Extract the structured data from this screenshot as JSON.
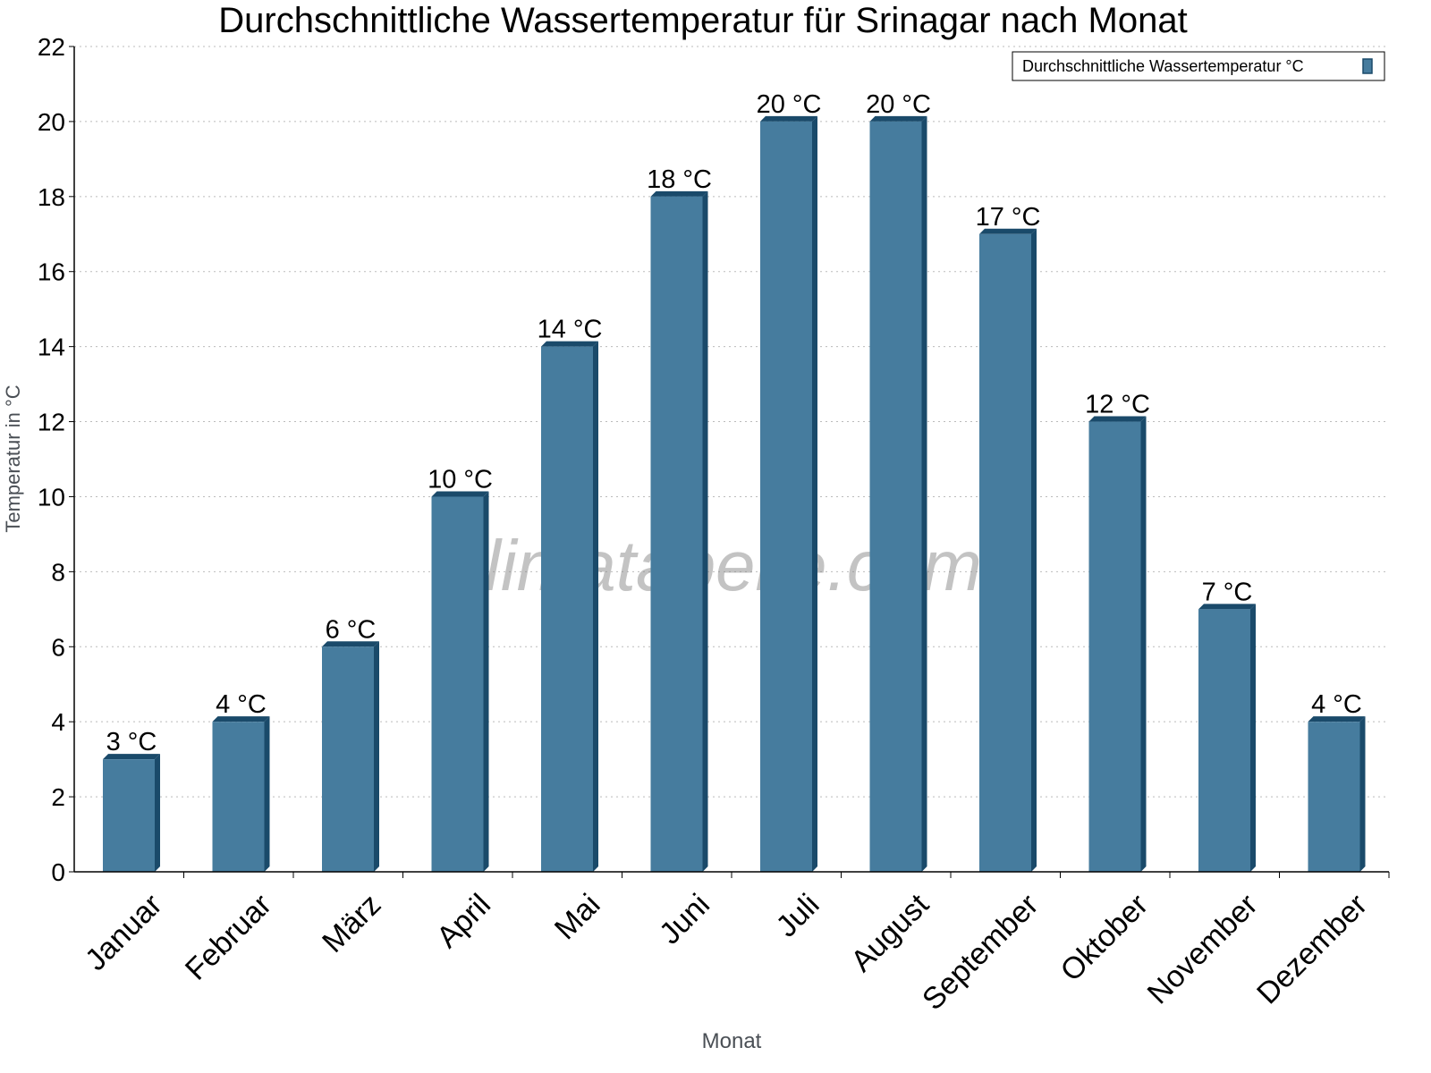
{
  "chart_data": {
    "type": "bar",
    "title": "Durchschnittliche Wassertemperatur für Srinagar nach Monat",
    "xlabel": "Monat",
    "ylabel": "Temperatur in °C",
    "categories": [
      "Januar",
      "Februar",
      "März",
      "April",
      "Mai",
      "Juni",
      "Juli",
      "August",
      "September",
      "Oktober",
      "November",
      "Dezember"
    ],
    "series": [
      {
        "name": "Durchschnittliche Wassertemperatur °C",
        "values": [
          3,
          4,
          6,
          10,
          14,
          18,
          20,
          20,
          17,
          12,
          7,
          4
        ]
      }
    ],
    "data_labels": [
      "3 °C",
      "4 °C",
      "6 °C",
      "10 °C",
      "14 °C",
      "18 °C",
      "20 °C",
      "20 °C",
      "17 °C",
      "12 °C",
      "7 °C",
      "4 °C"
    ],
    "ylim": [
      0,
      22
    ],
    "yticks": [
      0,
      2,
      4,
      6,
      8,
      10,
      12,
      14,
      16,
      18,
      20,
      22
    ],
    "grid": true,
    "legend_position": "top-right",
    "colors": {
      "bar_front": "#467c9e",
      "bar_side": "#1a4a6a"
    },
    "watermark": "klimatabelle.com"
  }
}
